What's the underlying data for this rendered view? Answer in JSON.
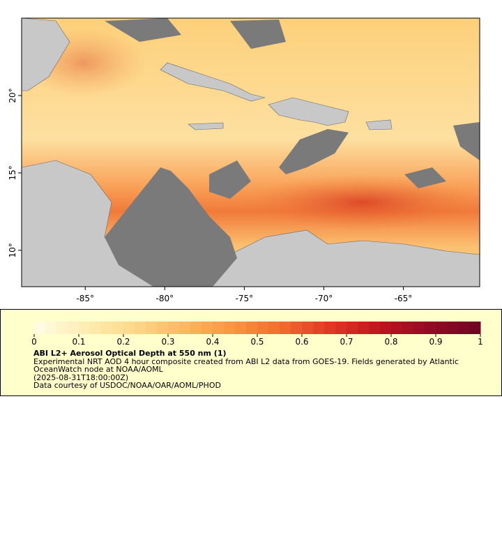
{
  "map": {
    "xlim": [
      -89,
      -60.2
    ],
    "ylim": [
      7.65,
      25
    ],
    "xticks": [
      {
        "value": -85,
        "label": "-85°"
      },
      {
        "value": -80,
        "label": "-80°"
      },
      {
        "value": -75,
        "label": "-75°"
      },
      {
        "value": -70,
        "label": "-70°"
      },
      {
        "value": -65,
        "label": "-65°"
      }
    ],
    "yticks": [
      {
        "value": 10,
        "label": "10°"
      },
      {
        "value": 15,
        "label": "15°"
      },
      {
        "value": 20,
        "label": "20°"
      }
    ]
  },
  "legend": {
    "colorbar": {
      "range": [
        0,
        1
      ],
      "ticks": [
        0,
        0.1,
        0.2,
        0.3,
        0.4,
        0.5,
        0.6,
        0.7,
        0.8,
        0.9,
        1
      ],
      "colors": [
        "#fffbe6",
        "#feeeb4",
        "#fdd88a",
        "#fcb865",
        "#fa9444",
        "#f26a30",
        "#e03524",
        "#c0131f",
        "#930a25",
        "#700322"
      ]
    },
    "title": "ABI L2+ Aerosol Optical Depth at 550 nm (1)",
    "description": "Experimental NRT AOD 4 hour composite created from ABI L2 data from GOES-19. Fields generated by Atlantic OceanWatch node at NOAA/AOML",
    "time": "(2025-08-31T18:00:00Z)",
    "credit": "Data courtesy of USDOC/NOAA/OAR/AOML/PHOD"
  }
}
